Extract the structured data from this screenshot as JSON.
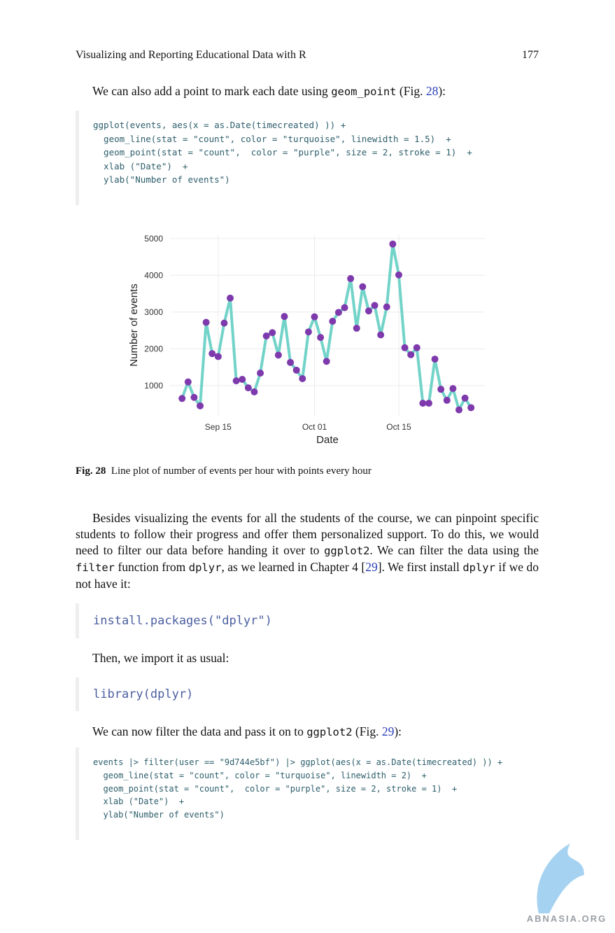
{
  "header": {
    "title": "Visualizing and Reporting Educational Data with R",
    "page": "177"
  },
  "para1": [
    "We can also add a point to mark each date using ",
    "geom_point",
    " (Fig. ",
    "28",
    "):"
  ],
  "code1": [
    "ggplot(events, aes(x = as.Date(timecreated) )) +",
    "  geom_line(stat = \"count\", color = \"turquoise\", linewidth = 1.5)  +",
    "  geom_point(stat = \"count\",  color = \"purple\", size = 2, stroke = 1)  +",
    "  xlab (\"Date\")  +",
    "  ylab(\"Number of events\")"
  ],
  "figure": {
    "chart_data": {
      "type": "line",
      "x_label": "Date",
      "y_label": "Number of events",
      "x": [
        "Sep 09",
        "Sep 10",
        "Sep 11",
        "Sep 12",
        "Sep 13",
        "Sep 14",
        "Sep 15",
        "Sep 16",
        "Sep 17",
        "Sep 18",
        "Sep 19",
        "Sep 20",
        "Sep 21",
        "Sep 22",
        "Sep 23",
        "Sep 24",
        "Sep 25",
        "Sep 26",
        "Sep 27",
        "Sep 28",
        "Sep 29",
        "Sep 30",
        "Oct 01",
        "Oct 02",
        "Oct 03",
        "Oct 04",
        "Oct 05",
        "Oct 06",
        "Oct 07",
        "Oct 08",
        "Oct 09",
        "Oct 10",
        "Oct 11",
        "Oct 12",
        "Oct 13",
        "Oct 14",
        "Oct 15",
        "Oct 16",
        "Oct 17",
        "Oct 18",
        "Oct 19",
        "Oct 20",
        "Oct 21",
        "Oct 22",
        "Oct 23",
        "Oct 24",
        "Oct 25",
        "Oct 26",
        "Oct 27"
      ],
      "series": [
        {
          "color": "#72d3c9",
          "point_color": "#7e3aad",
          "values": [
            650,
            1100,
            680,
            450,
            2720,
            1870,
            1790,
            2700,
            3380,
            1130,
            1170,
            940,
            830,
            1340,
            2350,
            2440,
            1830,
            2880,
            1630,
            1420,
            1190,
            2460,
            2870,
            2310,
            1660,
            2750,
            2990,
            3120,
            3910,
            2560,
            3690,
            3030,
            3180,
            2380,
            3140,
            4850,
            4010,
            2030,
            1840,
            2030,
            520,
            520,
            1720,
            900,
            600,
            920,
            340,
            660,
            400
          ]
        }
      ],
      "xticks": [
        "Sep 15",
        "Oct 01",
        "Oct 15"
      ],
      "ylim": [
        180,
        5110
      ],
      "yticks": [
        1000,
        2000,
        3000,
        4000,
        5000
      ],
      "grid": true
    },
    "caption": {
      "label": "Fig. 28",
      "text": "Line plot of number of events per hour with points every hour"
    }
  },
  "para2": [
    "Besides visualizing the events for all the students of the course, we can pinpoint specific students to follow their progress and offer them personalized support. To do this, we would need to filter our data before handing it over to ",
    "ggplot2",
    ". We can filter the data using the ",
    "filter",
    " function from ",
    "dplyr",
    ", as we learned in Chapter 4 [",
    "29",
    "]. We first install ",
    "dplyr",
    " if we do not have it:"
  ],
  "code2": "install.packages(\"dplyr\")",
  "para3": "Then, we import it as usual:",
  "code3": "library(dplyr)",
  "para4": [
    "We can now filter the data and pass it on to ",
    "ggplot2",
    " (Fig. ",
    "29",
    "):"
  ],
  "code4": [
    "events |> filter(user == \"9d744e5bf\") |> ggplot(aes(x = as.Date(timecreated) )) +",
    "  geom_line(stat = \"count\", color = \"turquoise\", linewidth = 2)  +",
    "  geom_point(stat = \"count\",  color = \"purple\", size = 2, stroke = 1)  +",
    "  xlab (\"Date\")  +",
    "  ylab(\"Number of events\")"
  ],
  "watermark": "ABNASIA.ORG"
}
